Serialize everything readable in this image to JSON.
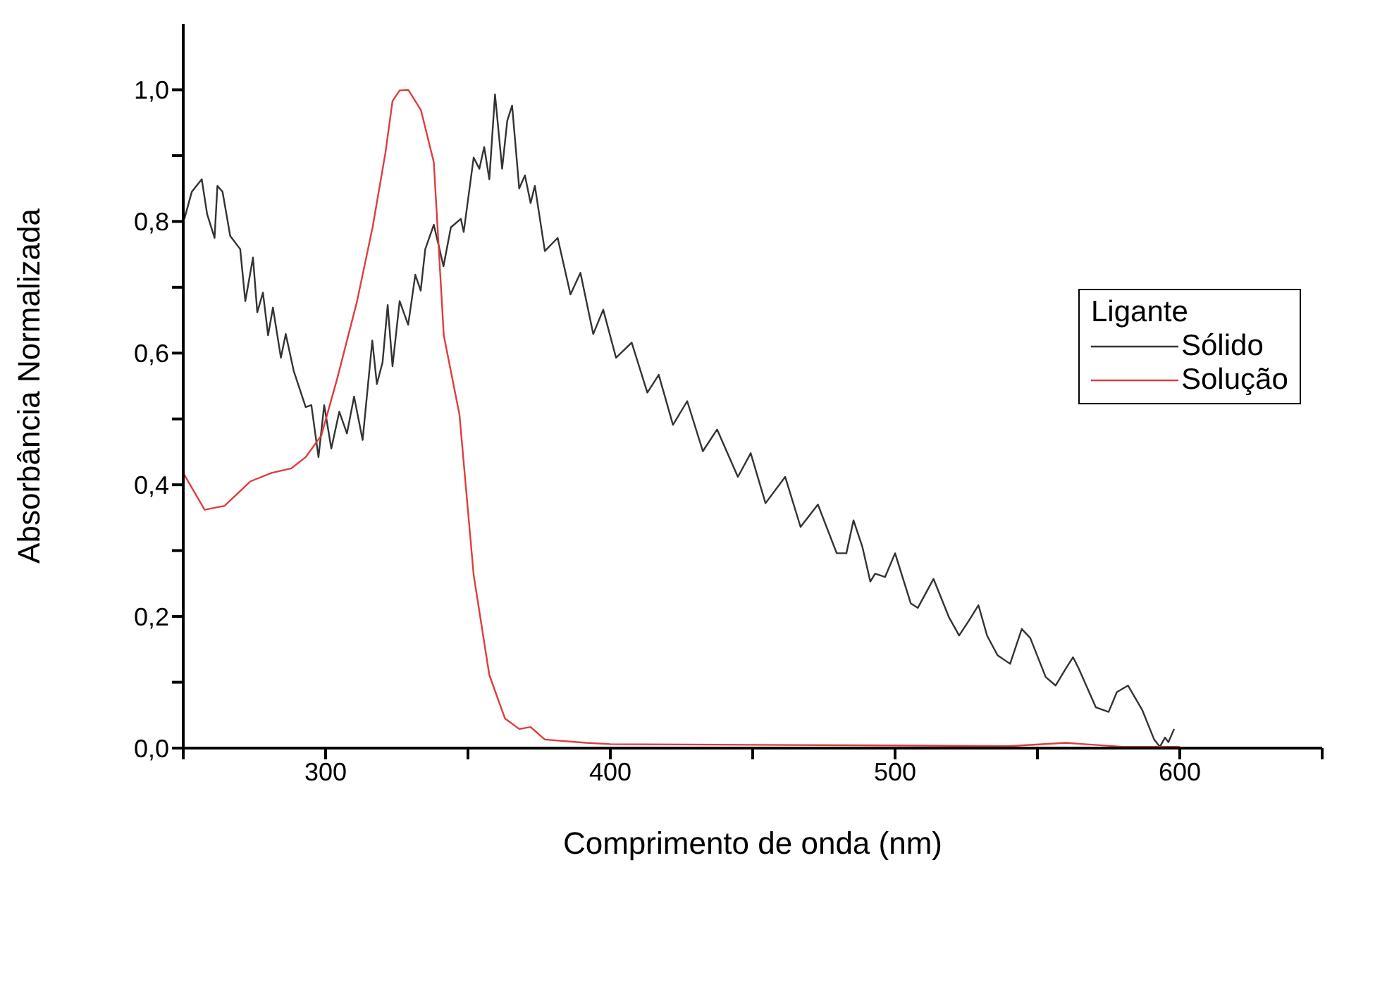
{
  "chart_data": {
    "type": "line",
    "xlabel": "Comprimento de onda (nm)",
    "ylabel": "Absorbância Normalizada",
    "legend_title": "Ligante",
    "legend": "right",
    "marker": "none",
    "line_style": "solid",
    "xlim": [
      250,
      650
    ],
    "xticks": [
      {
        "value": 250,
        "label": null
      },
      300,
      {
        "value": 350,
        "label": null
      },
      400,
      {
        "value": 450,
        "label": null
      },
      500,
      {
        "value": 550,
        "label": null
      },
      600,
      {
        "value": 650,
        "label": null
      }
    ],
    "ylim": [
      0,
      1.1
    ],
    "yticks": [
      {
        "value": 0,
        "label": "0,0"
      },
      {
        "value": 0.1,
        "label": null
      },
      {
        "value": 0.2,
        "label": "0,2"
      },
      {
        "value": 0.3,
        "label": null
      },
      {
        "value": 0.4,
        "label": "0,4"
      },
      {
        "value": 0.5,
        "label": null
      },
      {
        "value": 0.6,
        "label": "0,6"
      },
      {
        "value": 0.7,
        "label": null
      },
      {
        "value": 0.8,
        "label": "0,8"
      },
      {
        "value": 0.9,
        "label": null
      },
      {
        "value": 1.0,
        "label": "1,0"
      }
    ],
    "series": [
      {
        "name": "Sólido",
        "color": "#333333",
        "x": [
          250.4,
          253,
          256.5,
          258.4,
          261,
          262,
          263.8,
          266.5,
          270,
          271.8,
          274.5,
          276,
          278,
          279.8,
          281.5,
          284.3,
          286,
          288.8,
          293,
          295,
          297.5,
          299.5,
          302,
          304.8,
          307.5,
          310,
          313,
          316.4,
          318,
          320,
          321.8,
          323.5,
          326,
          329,
          331.5,
          333.4,
          335,
          338,
          341.4,
          344,
          347.5,
          348.5,
          352,
          354,
          355.7,
          357.5,
          359.5,
          362,
          363.8,
          365.5,
          368,
          370,
          372,
          373.5,
          377,
          381.5,
          386,
          389.5,
          394,
          397.5,
          402,
          407.5,
          413,
          417,
          422,
          427,
          432.5,
          437.5,
          444.8,
          449.3,
          454.5,
          461.4,
          466.8,
          472.9,
          479.5,
          482.9,
          485.4,
          488.5,
          491.3,
          493,
          496.5,
          500,
          505.5,
          508,
          513.5,
          519,
          522.5,
          526,
          529.3,
          532.3,
          536,
          540.4,
          544.5,
          547.5,
          552.9,
          556.4,
          560,
          562.5,
          564.5,
          570.5,
          575,
          577.9,
          581.8,
          586.8,
          591,
          593,
          594.8,
          596,
          598
        ],
        "values": [
          0.804,
          0.845,
          0.864,
          0.811,
          0.775,
          0.854,
          0.845,
          0.778,
          0.758,
          0.679,
          0.745,
          0.662,
          0.692,
          0.627,
          0.669,
          0.593,
          0.629,
          0.573,
          0.518,
          0.521,
          0.442,
          0.521,
          0.455,
          0.511,
          0.478,
          0.534,
          0.468,
          0.619,
          0.553,
          0.586,
          0.673,
          0.58,
          0.679,
          0.643,
          0.719,
          0.695,
          0.758,
          0.795,
          0.732,
          0.791,
          0.804,
          0.784,
          0.897,
          0.88,
          0.913,
          0.864,
          0.993,
          0.88,
          0.953,
          0.976,
          0.85,
          0.87,
          0.828,
          0.854,
          0.755,
          0.775,
          0.689,
          0.722,
          0.629,
          0.666,
          0.593,
          0.616,
          0.54,
          0.567,
          0.491,
          0.527,
          0.451,
          0.484,
          0.412,
          0.448,
          0.372,
          0.412,
          0.336,
          0.37,
          0.296,
          0.296,
          0.346,
          0.306,
          0.253,
          0.265,
          0.26,
          0.296,
          0.22,
          0.213,
          0.257,
          0.198,
          0.171,
          0.194,
          0.217,
          0.171,
          0.141,
          0.128,
          0.181,
          0.167,
          0.108,
          0.095,
          0.121,
          0.138,
          0.121,
          0.062,
          0.055,
          0.085,
          0.095,
          0.058,
          0.013,
          0.002,
          0.016,
          0.009,
          0.029
        ]
      },
      {
        "name": "Solução",
        "color": "#e03c3c",
        "x": [
          250,
          257.5,
          264.5,
          273.5,
          281,
          288,
          293,
          298.5,
          304,
          311,
          316.5,
          321,
          323.5,
          326,
          329,
          333.5,
          338,
          341.5,
          347,
          352,
          357.5,
          363,
          368,
          372,
          377,
          391.5,
          400,
          450,
          500,
          540,
          560,
          580,
          600
        ],
        "values": [
          0.418,
          0.362,
          0.368,
          0.405,
          0.418,
          0.425,
          0.442,
          0.475,
          0.56,
          0.678,
          0.791,
          0.904,
          0.983,
          0.999,
          1.0,
          0.969,
          0.89,
          0.627,
          0.507,
          0.263,
          0.111,
          0.045,
          0.029,
          0.032,
          0.013,
          0.008,
          0.006,
          0.005,
          0.004,
          0.003,
          0.008,
          0.002,
          0.002
        ]
      }
    ]
  }
}
